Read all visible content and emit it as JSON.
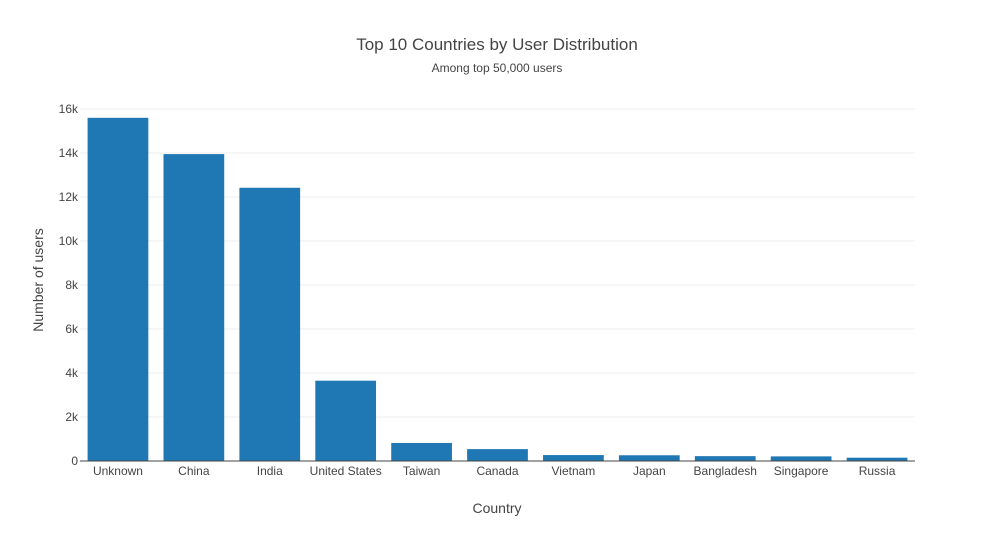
{
  "chart_data": {
    "type": "bar",
    "title": "Top 10 Countries by User Distribution",
    "subtitle": "Among top 50,000 users",
    "xlabel": "Country",
    "ylabel": "Number of users",
    "categories": [
      "Unknown",
      "China",
      "India",
      "United States",
      "Taiwan",
      "Canada",
      "Vietnam",
      "Japan",
      "Bangladesh",
      "Singapore",
      "Russia"
    ],
    "values": [
      15600,
      13950,
      12420,
      3650,
      820,
      540,
      270,
      260,
      220,
      210,
      150
    ],
    "ylim": [
      0,
      16000
    ],
    "yticks": [
      0,
      2000,
      4000,
      6000,
      8000,
      10000,
      12000,
      14000,
      16000
    ],
    "ytick_labels": [
      "0",
      "2k",
      "4k",
      "6k",
      "8k",
      "10k",
      "12k",
      "14k",
      "16k"
    ],
    "grid": true,
    "bar_color": "#1f77b4"
  }
}
